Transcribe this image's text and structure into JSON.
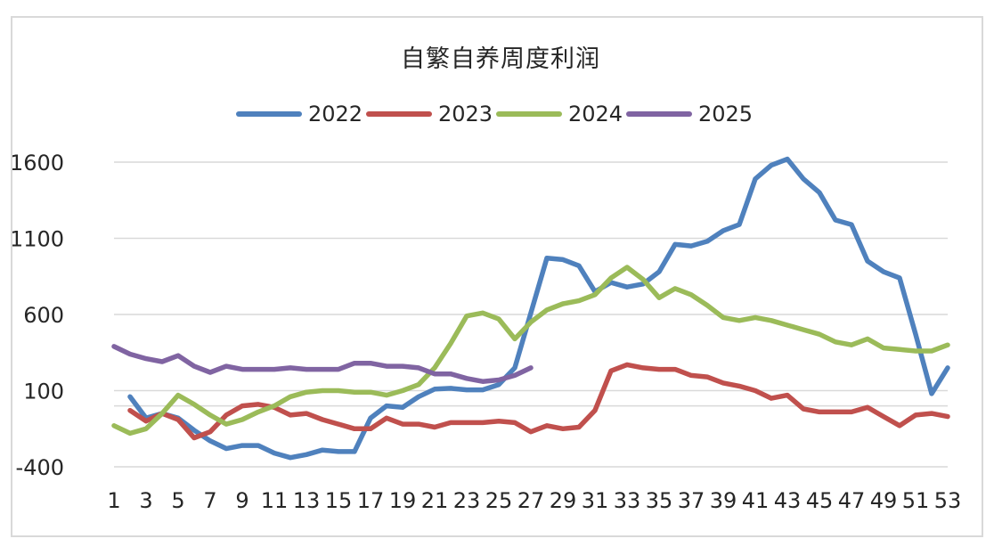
{
  "chart_data": {
    "type": "line",
    "title": "自繁自养周度利润",
    "xlabel": "",
    "ylabel": "",
    "ylim": [
      -400,
      1600
    ],
    "yticks": [
      1600,
      1100,
      600,
      100,
      -400
    ],
    "xlim": [
      1,
      53
    ],
    "xticks": [
      1,
      3,
      5,
      7,
      9,
      11,
      13,
      15,
      17,
      19,
      21,
      23,
      25,
      27,
      29,
      31,
      33,
      35,
      37,
      39,
      41,
      43,
      45,
      47,
      49,
      51,
      53
    ],
    "grid": true,
    "legend_position": "top",
    "series": [
      {
        "name": "2022",
        "color": "#4f81bd",
        "x": [
          2,
          3,
          4,
          5,
          6,
          7,
          8,
          9,
          10,
          11,
          12,
          13,
          14,
          15,
          16,
          17,
          18,
          19,
          20,
          21,
          22,
          23,
          24,
          25,
          26,
          27,
          28,
          29,
          30,
          31,
          32,
          33,
          34,
          35,
          36,
          37,
          38,
          39,
          40,
          41,
          42,
          43,
          44,
          45,
          46,
          47,
          48,
          49,
          50,
          51,
          52,
          53
        ],
        "values": [
          60,
          -80,
          -50,
          -80,
          -160,
          -230,
          -280,
          -260,
          -260,
          -310,
          -340,
          -320,
          -290,
          -300,
          -300,
          -80,
          0,
          -10,
          60,
          110,
          115,
          105,
          105,
          140,
          250,
          610,
          970,
          960,
          920,
          750,
          810,
          780,
          800,
          880,
          1060,
          1050,
          1080,
          1150,
          1190,
          1490,
          1580,
          1620,
          1490,
          1400,
          1220,
          1190,
          950,
          880,
          840,
          470,
          80,
          250
        ]
      },
      {
        "name": "2023",
        "color": "#c0504d",
        "x": [
          2,
          3,
          4,
          5,
          6,
          7,
          8,
          9,
          10,
          11,
          12,
          13,
          14,
          15,
          16,
          17,
          18,
          19,
          20,
          21,
          22,
          23,
          24,
          25,
          26,
          27,
          28,
          29,
          30,
          31,
          32,
          33,
          34,
          35,
          36,
          37,
          38,
          39,
          40,
          41,
          42,
          43,
          44,
          45,
          46,
          47,
          48,
          49,
          50,
          51,
          52,
          53
        ],
        "values": [
          -30,
          -100,
          -50,
          -90,
          -210,
          -170,
          -60,
          0,
          10,
          -10,
          -60,
          -50,
          -90,
          -120,
          -150,
          -150,
          -80,
          -120,
          -120,
          -140,
          -110,
          -110,
          -110,
          -100,
          -110,
          -170,
          -130,
          -150,
          -140,
          -30,
          230,
          270,
          250,
          240,
          240,
          200,
          190,
          150,
          130,
          100,
          50,
          70,
          -20,
          -40,
          -40,
          -40,
          -10,
          -70,
          -130,
          -60,
          -50,
          -70
        ]
      },
      {
        "name": "2024",
        "color": "#9bbb59",
        "x": [
          1,
          2,
          3,
          4,
          5,
          6,
          7,
          8,
          9,
          10,
          11,
          12,
          13,
          14,
          15,
          16,
          17,
          18,
          19,
          20,
          21,
          22,
          23,
          24,
          25,
          26,
          27,
          28,
          29,
          30,
          31,
          32,
          33,
          34,
          35,
          36,
          37,
          38,
          39,
          40,
          41,
          42,
          43,
          44,
          45,
          46,
          47,
          48,
          49,
          50,
          51,
          52,
          53
        ],
        "values": [
          -130,
          -180,
          -150,
          -50,
          70,
          10,
          -60,
          -120,
          -90,
          -40,
          0,
          60,
          90,
          100,
          100,
          90,
          90,
          70,
          100,
          140,
          250,
          410,
          590,
          610,
          570,
          440,
          550,
          630,
          670,
          690,
          730,
          840,
          910,
          830,
          710,
          770,
          730,
          660,
          580,
          560,
          580,
          560,
          530,
          500,
          470,
          420,
          400,
          440,
          380,
          370,
          360,
          360,
          400
        ]
      },
      {
        "name": "2025",
        "color": "#8064a2",
        "x": [
          1,
          2,
          3,
          4,
          5,
          6,
          7,
          8,
          9,
          10,
          11,
          12,
          13,
          14,
          15,
          16,
          17,
          18,
          19,
          20,
          21,
          22,
          23,
          24,
          25,
          26,
          27
        ],
        "values": [
          390,
          340,
          310,
          290,
          330,
          260,
          220,
          260,
          240,
          240,
          240,
          250,
          240,
          240,
          240,
          280,
          280,
          260,
          260,
          250,
          210,
          210,
          180,
          160,
          170,
          200,
          250
        ]
      }
    ]
  }
}
